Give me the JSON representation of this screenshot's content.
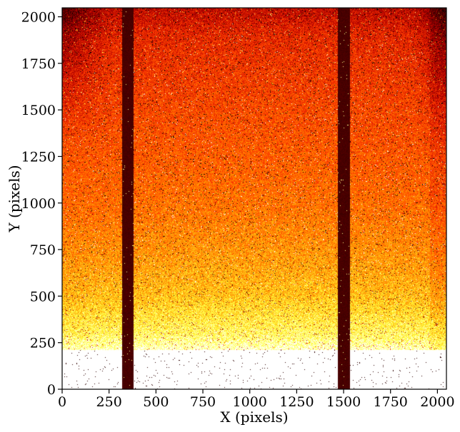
{
  "chart_data": {
    "type": "heatmap",
    "title": "",
    "xlabel": "X (pixels)",
    "ylabel": "Y (pixels)",
    "xlim": [
      0,
      2048
    ],
    "ylim": [
      0,
      2048
    ],
    "x_ticks": [
      0,
      250,
      500,
      750,
      1000,
      1250,
      1500,
      1750,
      2000
    ],
    "x_tick_labels": [
      "0",
      "250",
      "500",
      "750",
      "1000",
      "1250",
      "1500",
      "1750",
      "2000"
    ],
    "y_ticks": [
      0,
      250,
      500,
      750,
      1000,
      1250,
      1500,
      1750,
      2000
    ],
    "y_tick_labels": [
      "0",
      "250",
      "500",
      "750",
      "1000",
      "1250",
      "1500",
      "1750",
      "2000"
    ],
    "colormap": "hot",
    "colormap_stops": [
      "#000000",
      "#4a0000",
      "#b40000",
      "#ff3c00",
      "#ff9600",
      "#ffff3c",
      "#ffffff"
    ],
    "intensity_profile_by_y": [
      {
        "y": 0,
        "level": 1.0
      },
      {
        "y": 200,
        "level": 0.97
      },
      {
        "y": 300,
        "level": 0.86
      },
      {
        "y": 500,
        "level": 0.74
      },
      {
        "y": 750,
        "level": 0.66
      },
      {
        "y": 1000,
        "level": 0.6
      },
      {
        "y": 1250,
        "level": 0.56
      },
      {
        "y": 1500,
        "level": 0.52
      },
      {
        "y": 1750,
        "level": 0.48
      },
      {
        "y": 2048,
        "level": 0.42
      }
    ],
    "dark_columns": [
      {
        "x_start": 320,
        "x_end": 380,
        "level": 0.16
      },
      {
        "x_start": 1470,
        "x_end": 1535,
        "level": 0.16
      }
    ],
    "grid": false,
    "legend": "none"
  }
}
